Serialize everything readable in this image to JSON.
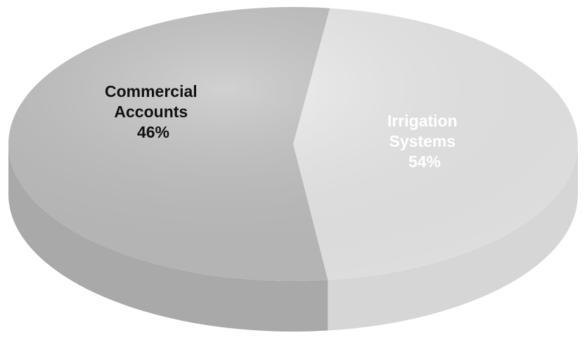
{
  "chart_data": {
    "type": "pie",
    "title": "",
    "slices": [
      {
        "label_lines": [
          "Commercial",
          "Accounts"
        ],
        "percent_label": "46%",
        "value": 46,
        "top_color": "#eeeeee",
        "side_color": "#d6d6d6",
        "text_color": "#111111"
      },
      {
        "label_lines": [
          "Irrigation",
          "Systems"
        ],
        "percent_label": "54%",
        "value": 54,
        "top_color": "#c2c2c2",
        "side_color": "#a9a9a9",
        "text_color": "#ffffff"
      }
    ],
    "style": "3d",
    "legend": "none"
  }
}
